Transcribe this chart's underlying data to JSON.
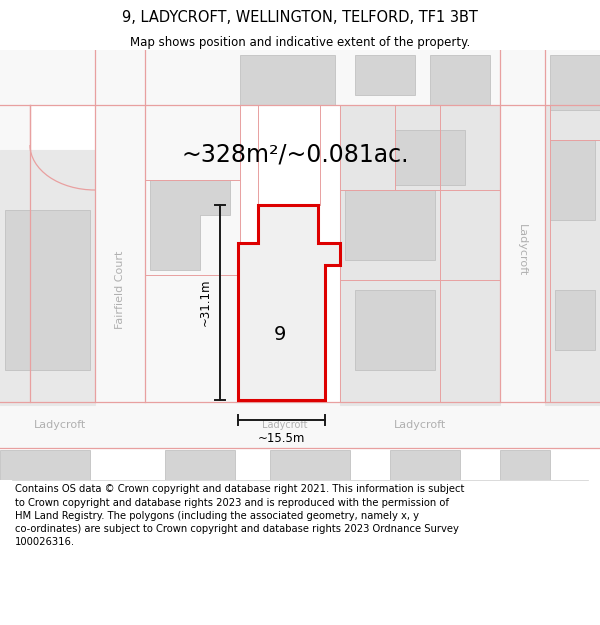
{
  "title": "9, LADYCROFT, WELLINGTON, TELFORD, TF1 3BT",
  "subtitle": "Map shows position and indicative extent of the property.",
  "footer": "Contains OS data © Crown copyright and database right 2021. This information is subject\nto Crown copyright and database rights 2023 and is reproduced with the permission of\nHM Land Registry. The polygons (including the associated geometry, namely x, y\nco-ordinates) are subject to Crown copyright and database rights 2023 Ordnance Survey\n100026316.",
  "area_label": "~328m²/~0.081ac.",
  "number_label": "9",
  "width_label": "~15.5m",
  "height_label": "~31.1m",
  "bg_color": "#ffffff",
  "map_bg": "#ebebeb",
  "highlight_fill": "#f0f0f0",
  "highlight_stroke": "#dd0000",
  "road_fill": "#f8f8f8",
  "building_fill": "#d4d4d4",
  "road_line_color": "#e8a0a0",
  "street_label_color": "#b0b0b0",
  "dim_line_color": "#1a1a1a",
  "title_fontsize": 10.5,
  "subtitle_fontsize": 8.5,
  "footer_fontsize": 7.2,
  "area_fontsize": 17,
  "number_fontsize": 14,
  "dim_fontsize": 8.5,
  "street_fontsize": 8
}
